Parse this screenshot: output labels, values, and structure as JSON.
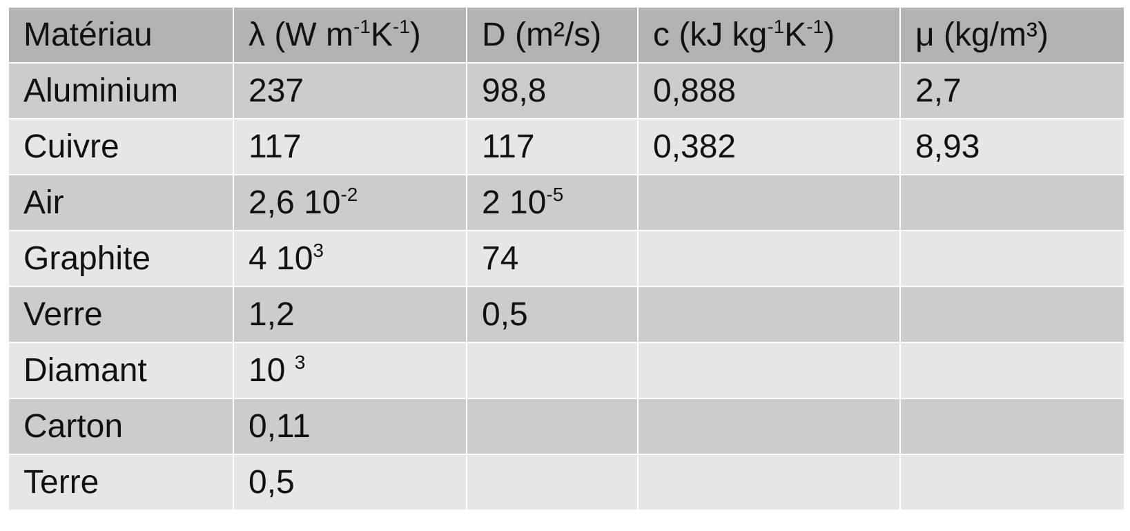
{
  "table": {
    "header": [
      "Matériau",
      [
        {
          "t": "λ (W m"
        },
        {
          "sup": "-1"
        },
        {
          "t": "K"
        },
        {
          "sup": "-1"
        },
        {
          "t": ")"
        }
      ],
      "D (m²/s)",
      [
        {
          "t": "c (kJ kg"
        },
        {
          "sup": "-1"
        },
        {
          "t": "K"
        },
        {
          "sup": "-1"
        },
        {
          "t": ")"
        }
      ],
      "μ (kg/m³)"
    ],
    "rows": [
      [
        "Aluminium",
        "237",
        "98,8",
        "0,888",
        "2,7"
      ],
      [
        "Cuivre",
        "117",
        "117",
        "0,382",
        "8,93"
      ],
      [
        "Air",
        [
          {
            "t": "2,6 10"
          },
          {
            "sup": "-2"
          }
        ],
        [
          {
            "t": "2 10"
          },
          {
            "sup": "-5"
          }
        ]
      ],
      [
        "Graphite",
        [
          {
            "t": "4 10"
          },
          {
            "sup": "3"
          }
        ],
        "74"
      ],
      [
        "Verre",
        "1,2",
        "0,5"
      ],
      [
        "Diamant",
        [
          {
            "t": "10 "
          },
          {
            "sup": "3"
          }
        ]
      ],
      [
        "Carton",
        "0,11"
      ],
      [
        "Terre",
        "0,5"
      ]
    ]
  }
}
